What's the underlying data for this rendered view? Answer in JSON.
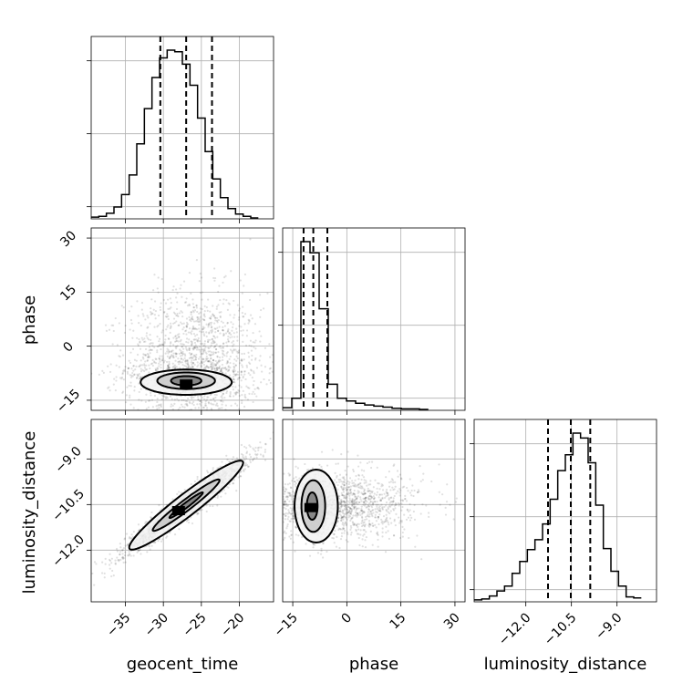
{
  "chart_data": {
    "type": "corner",
    "parameters": [
      {
        "name": "geocent_time",
        "range": [
          -39.5,
          -15.5
        ],
        "ticks": [
          -35,
          -30,
          -25,
          -20
        ],
        "tick_labels": [
          "−35",
          "−30",
          "−25",
          "−20"
        ],
        "quantiles": [
          -30.4,
          -27.0,
          -23.6
        ],
        "hist_edges": [
          -39.5,
          -38.5,
          -37.5,
          -36.5,
          -35.5,
          -34.5,
          -33.5,
          -32.5,
          -31.5,
          -30.5,
          -29.5,
          -28.5,
          -27.5,
          -26.5,
          -25.5,
          -24.5,
          -23.5,
          -22.5,
          -21.5,
          -20.5,
          -19.5,
          -18.5,
          -17.5
        ],
        "hist_counts": [
          1,
          2,
          6,
          14,
          30,
          55,
          95,
          140,
          180,
          205,
          215,
          213,
          197,
          170,
          128,
          85,
          50,
          26,
          12,
          5,
          2,
          0
        ]
      },
      {
        "name": "phase",
        "range": [
          -17.8,
          32.8
        ],
        "ticks": [
          -15,
          0,
          15,
          30
        ],
        "tick_labels": [
          "−15",
          "0",
          "15",
          "30"
        ],
        "quantiles": [
          -12.0,
          -9.3,
          -5.4
        ],
        "hist_edges": [
          -17.8,
          -15.27,
          -12.74,
          -10.21,
          -7.68,
          -5.15,
          -2.62,
          -0.09,
          2.44,
          4.97,
          7.5,
          10.03,
          12.56,
          15.09,
          17.62,
          20.15,
          22.62
        ],
        "hist_counts": [
          3,
          20,
          300,
          280,
          180,
          45,
          20,
          15,
          11,
          8,
          6,
          4,
          2,
          1,
          1,
          0
        ]
      },
      {
        "name": "luminosity_distance",
        "range": [
          -13.7,
          -7.7
        ],
        "ticks": [
          -12.0,
          -10.5,
          -9.0
        ],
        "tick_labels": [
          "−12.0",
          "−10.5",
          "−9.0"
        ],
        "quantiles": [
          -11.27,
          -10.52,
          -9.88
        ],
        "hist_edges": [
          -13.7,
          -13.45,
          -13.2,
          -12.95,
          -12.7,
          -12.45,
          -12.2,
          -11.95,
          -11.7,
          -11.45,
          -11.2,
          -10.95,
          -10.7,
          -10.45,
          -10.2,
          -9.95,
          -9.7,
          -9.45,
          -9.2,
          -8.95,
          -8.7,
          -8.45,
          -8.2
        ],
        "hist_counts": [
          1,
          2,
          5,
          10,
          15,
          28,
          40,
          52,
          62,
          78,
          103,
          132,
          148,
          170,
          165,
          140,
          97,
          53,
          30,
          15,
          4,
          3
        ]
      }
    ],
    "hist_panel_ticks": [
      0.1,
      0.7,
      1.3
    ],
    "pairs": [
      {
        "x": "geocent_time",
        "y": "phase",
        "y_ticks": [
          -15,
          0,
          15,
          30
        ],
        "y_tick_labels": [
          "−15",
          "0",
          "15",
          "30"
        ],
        "scatter": {
          "center": [
            -26.0,
            -6.0
          ],
          "spread": [
            4.5,
            6.5
          ],
          "tail_up": true,
          "n": 1800
        },
        "contours": [
          {
            "center": [
              -27.0,
              -10.0
            ],
            "radii": [
              6.0,
              3.5
            ]
          },
          {
            "center": [
              -27.0,
              -9.6
            ],
            "radii": [
              3.8,
              2.3
            ]
          },
          {
            "center": [
              -27.0,
              -9.6
            ],
            "radii": [
              2.0,
              1.3
            ]
          }
        ],
        "density_peak": [
          -27.0,
          -10.5
        ]
      },
      {
        "x": "geocent_time",
        "y": "luminosity_distance",
        "y_ticks": [
          -12.0,
          -10.5,
          -9.0
        ],
        "y_tick_labels": [
          "−12.0",
          "−10.5",
          "−9.0"
        ],
        "scatter": {
          "center": [
            -27.0,
            -10.52
          ],
          "spread": [
            4.0,
            0.05
          ],
          "slope": 0.186,
          "n": 1800
        },
        "contours": [
          {
            "center": [
              -27.0,
              -10.52
            ],
            "radii": [
              7.5,
              0.45
            ],
            "slope": 0.186
          },
          {
            "center": [
              -27.0,
              -10.52
            ],
            "radii": [
              4.4,
              0.22
            ],
            "slope": 0.186
          },
          {
            "center": [
              -27.0,
              -10.52
            ],
            "radii": [
              2.2,
              0.1
            ],
            "slope": 0.186
          }
        ],
        "density_peak": [
          -28.0,
          -10.7
        ]
      },
      {
        "x": "phase",
        "y": "luminosity_distance",
        "scatter": {
          "center": [
            -6.0,
            -10.52
          ],
          "spread": [
            6.5,
            0.55
          ],
          "tail_right": true,
          "n": 1800
        },
        "contours": [
          {
            "center": [
              -8.5,
              -10.55
            ],
            "radii": [
              6.0,
              1.2
            ]
          },
          {
            "center": [
              -9.3,
              -10.55
            ],
            "radii": [
              3.3,
              0.85
            ]
          },
          {
            "center": [
              -9.6,
              -10.55
            ],
            "radii": [
              1.5,
              0.45
            ]
          }
        ],
        "density_peak": [
          -10.0,
          -10.6
        ]
      }
    ]
  }
}
